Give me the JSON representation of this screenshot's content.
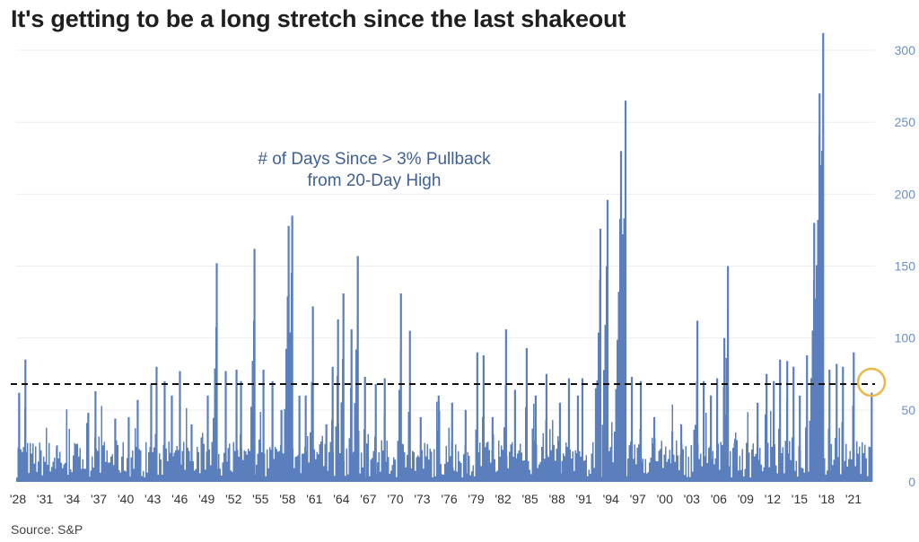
{
  "title": "It's getting to be a long stretch since the last shakeout",
  "source": "Source: S&P",
  "colors": {
    "bars": "#5b7fbd",
    "reference_line": "#111111",
    "highlight_circle": "#e8b84a",
    "ytick": "#6a8fc4"
  },
  "chart_data": {
    "type": "bar",
    "annotation": [
      "# of Days Since > 3% Pullback",
      "from 20-Day High"
    ],
    "x_tick_labels": [
      "'28",
      "'31",
      "'34",
      "'37",
      "'40",
      "'43",
      "'46",
      "'49",
      "'52",
      "'55",
      "'58",
      "'61",
      "'64",
      "'67",
      "'70",
      "'73",
      "'76",
      "'79",
      "'82",
      "'85",
      "'88",
      "'91",
      "'94",
      "'97",
      "'00",
      "'03",
      "'06",
      "'09",
      "'12",
      "'15",
      "'18",
      "'21"
    ],
    "x_tick_years": [
      1928,
      1931,
      1934,
      1937,
      1940,
      1943,
      1946,
      1949,
      1952,
      1955,
      1958,
      1961,
      1964,
      1967,
      1970,
      1973,
      1976,
      1979,
      1982,
      1985,
      1988,
      1991,
      1994,
      1997,
      2000,
      2003,
      2006,
      2009,
      2012,
      2015,
      2018,
      2021
    ],
    "y_ticks": [
      0,
      50,
      100,
      150,
      200,
      250,
      300
    ],
    "ylim": [
      0,
      310
    ],
    "xlim": [
      1928,
      2023.6
    ],
    "reference_value": 68,
    "highlight": {
      "x": 2023.4,
      "y": 68
    },
    "grid": "horizontal",
    "peaks": [
      {
        "x": 1928.3,
        "y": 62
      },
      {
        "x": 1929.0,
        "y": 85
      },
      {
        "x": 1932.5,
        "y": 25
      },
      {
        "x": 1936.0,
        "y": 48
      },
      {
        "x": 1936.8,
        "y": 63
      },
      {
        "x": 1939.0,
        "y": 44
      },
      {
        "x": 1940.5,
        "y": 45
      },
      {
        "x": 1941.5,
        "y": 57
      },
      {
        "x": 1943.0,
        "y": 68
      },
      {
        "x": 1943.6,
        "y": 80
      },
      {
        "x": 1944.5,
        "y": 70
      },
      {
        "x": 1945.3,
        "y": 60
      },
      {
        "x": 1946.2,
        "y": 77
      },
      {
        "x": 1947.5,
        "y": 40
      },
      {
        "x": 1949.3,
        "y": 60
      },
      {
        "x": 1950.3,
        "y": 152
      },
      {
        "x": 1951.3,
        "y": 77
      },
      {
        "x": 1952.5,
        "y": 78
      },
      {
        "x": 1953.0,
        "y": 70
      },
      {
        "x": 1954.5,
        "y": 162
      },
      {
        "x": 1955.5,
        "y": 78
      },
      {
        "x": 1956.5,
        "y": 70
      },
      {
        "x": 1957.5,
        "y": 50
      },
      {
        "x": 1958.3,
        "y": 178
      },
      {
        "x": 1958.7,
        "y": 185
      },
      {
        "x": 1959.5,
        "y": 60
      },
      {
        "x": 1960.2,
        "y": 60
      },
      {
        "x": 1961.0,
        "y": 122
      },
      {
        "x": 1962.5,
        "y": 40
      },
      {
        "x": 1963.2,
        "y": 80
      },
      {
        "x": 1963.8,
        "y": 113
      },
      {
        "x": 1964.4,
        "y": 131
      },
      {
        "x": 1965.3,
        "y": 106
      },
      {
        "x": 1966.0,
        "y": 157
      },
      {
        "x": 1966.8,
        "y": 73
      },
      {
        "x": 1968.0,
        "y": 68
      },
      {
        "x": 1969.0,
        "y": 72
      },
      {
        "x": 1970.8,
        "y": 131
      },
      {
        "x": 1971.8,
        "y": 105
      },
      {
        "x": 1973.0,
        "y": 45
      },
      {
        "x": 1975.0,
        "y": 60
      },
      {
        "x": 1976.5,
        "y": 55
      },
      {
        "x": 1978.0,
        "y": 50
      },
      {
        "x": 1979.3,
        "y": 90
      },
      {
        "x": 1980.0,
        "y": 88
      },
      {
        "x": 1981.0,
        "y": 45
      },
      {
        "x": 1982.5,
        "y": 106
      },
      {
        "x": 1983.5,
        "y": 64
      },
      {
        "x": 1984.8,
        "y": 93
      },
      {
        "x": 1985.8,
        "y": 60
      },
      {
        "x": 1987.0,
        "y": 75
      },
      {
        "x": 1988.5,
        "y": 55
      },
      {
        "x": 1989.5,
        "y": 72
      },
      {
        "x": 1990.5,
        "y": 60
      },
      {
        "x": 1991.0,
        "y": 72
      },
      {
        "x": 1992.5,
        "y": 65
      },
      {
        "x": 1993.0,
        "y": 176
      },
      {
        "x": 1993.8,
        "y": 196
      },
      {
        "x": 1995.3,
        "y": 230
      },
      {
        "x": 1995.8,
        "y": 265
      },
      {
        "x": 1996.5,
        "y": 73
      },
      {
        "x": 1997.5,
        "y": 70
      },
      {
        "x": 1999.0,
        "y": 45
      },
      {
        "x": 2001.0,
        "y": 35
      },
      {
        "x": 2002.0,
        "y": 40
      },
      {
        "x": 2003.8,
        "y": 112
      },
      {
        "x": 2004.5,
        "y": 70
      },
      {
        "x": 2005.3,
        "y": 60
      },
      {
        "x": 2006.0,
        "y": 72
      },
      {
        "x": 2006.8,
        "y": 100
      },
      {
        "x": 2007.2,
        "y": 150
      },
      {
        "x": 2008.0,
        "y": 30
      },
      {
        "x": 2010.5,
        "y": 55
      },
      {
        "x": 2011.5,
        "y": 75
      },
      {
        "x": 2012.3,
        "y": 70
      },
      {
        "x": 2013.0,
        "y": 85
      },
      {
        "x": 2013.8,
        "y": 84
      },
      {
        "x": 2014.5,
        "y": 80
      },
      {
        "x": 2015.2,
        "y": 60
      },
      {
        "x": 2016.0,
        "y": 88
      },
      {
        "x": 2016.8,
        "y": 180
      },
      {
        "x": 2017.4,
        "y": 270
      },
      {
        "x": 2017.8,
        "y": 312
      },
      {
        "x": 2018.5,
        "y": 78
      },
      {
        "x": 2019.3,
        "y": 82
      },
      {
        "x": 2020.0,
        "y": 80
      },
      {
        "x": 2021.2,
        "y": 90
      },
      {
        "x": 2022.3,
        "y": 20
      },
      {
        "x": 2023.2,
        "y": 62
      }
    ]
  }
}
